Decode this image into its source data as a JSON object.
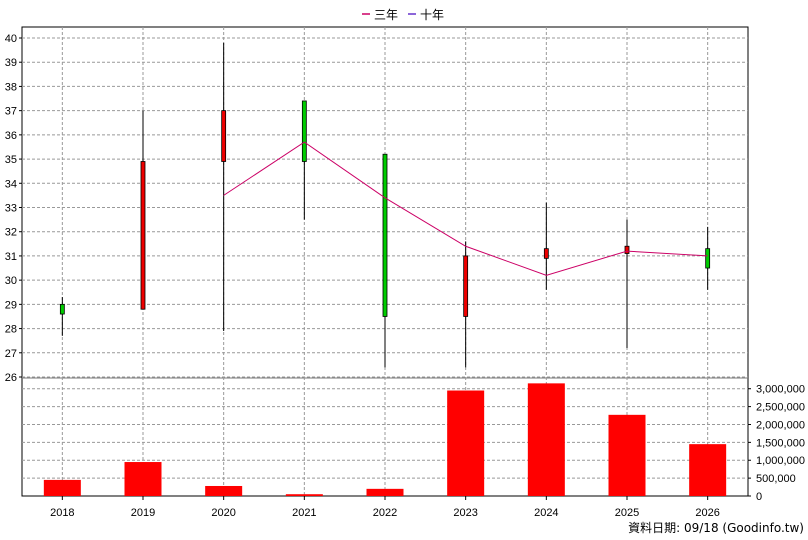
{
  "chart_data": {
    "type": "candlestick+bar",
    "legend": [
      {
        "name": "三年",
        "color": "#cc0066"
      },
      {
        "name": "十年",
        "color": "#6633cc"
      }
    ],
    "price_axis": {
      "min": 26,
      "max": 40,
      "ticks": [
        26,
        27,
        28,
        29,
        30,
        31,
        32,
        33,
        34,
        35,
        36,
        37,
        38,
        39,
        40
      ],
      "position": "left"
    },
    "volume_axis": {
      "min": 0,
      "max": 3000000,
      "ticks": [
        0,
        500000,
        1000000,
        1500000,
        2000000,
        2500000,
        3000000
      ],
      "tick_labels": [
        "0",
        "500,000",
        "1,000,000",
        "1,500,000",
        "2,000,000",
        "2,500,000",
        "3,000,000"
      ],
      "position": "right"
    },
    "categories": [
      "2018",
      "2019",
      "2020",
      "2021",
      "2022",
      "2023",
      "2024",
      "2025",
      "2026"
    ],
    "candles": [
      {
        "year": "2018",
        "open": 28.6,
        "close": 29.0,
        "high": 29.3,
        "low": 27.7,
        "color": "up"
      },
      {
        "year": "2019",
        "open": 34.9,
        "close": 28.8,
        "high": 37.0,
        "low": 28.8,
        "color": "down"
      },
      {
        "year": "2020",
        "open": 37.0,
        "close": 34.9,
        "high": 39.8,
        "low": 27.9,
        "color": "down"
      },
      {
        "year": "2021",
        "open": 34.9,
        "close": 37.4,
        "high": 37.4,
        "low": 32.5,
        "color": "up"
      },
      {
        "year": "2022",
        "open": 28.5,
        "close": 35.2,
        "high": 35.2,
        "low": 26.4,
        "color": "up"
      },
      {
        "year": "2023",
        "open": 31.0,
        "close": 28.5,
        "high": 31.6,
        "low": 26.4,
        "color": "down"
      },
      {
        "year": "2024",
        "open": 31.3,
        "close": 30.9,
        "high": 33.2,
        "low": 29.6,
        "color": "down"
      },
      {
        "year": "2025",
        "open": 31.4,
        "close": 31.1,
        "high": 32.5,
        "low": 27.2,
        "color": "down"
      },
      {
        "year": "2026",
        "open": 30.5,
        "close": 31.3,
        "high": 32.2,
        "low": 29.6,
        "color": "up"
      }
    ],
    "ma_line": {
      "name": "三年",
      "color": "#cc0066",
      "points": [
        {
          "year": "2020",
          "value": 33.5
        },
        {
          "year": "2021",
          "value": 35.7
        },
        {
          "year": "2022",
          "value": 33.4
        },
        {
          "year": "2023",
          "value": 31.4
        },
        {
          "year": "2024",
          "value": 30.2
        },
        {
          "year": "2025",
          "value": 31.2
        },
        {
          "year": "2026",
          "value": 31.0
        }
      ]
    },
    "volume": [
      {
        "year": "2018",
        "value": 450000
      },
      {
        "year": "2019",
        "value": 950000
      },
      {
        "year": "2020",
        "value": 280000
      },
      {
        "year": "2021",
        "value": 50000
      },
      {
        "year": "2022",
        "value": 200000
      },
      {
        "year": "2023",
        "value": 2950000
      },
      {
        "year": "2024",
        "value": 3150000
      },
      {
        "year": "2025",
        "value": 2270000
      },
      {
        "year": "2026",
        "value": 1450000
      }
    ],
    "colors": {
      "up": "#00cc00",
      "down": "#ee0000",
      "volume": "#ff0000",
      "grid": "#999999",
      "wick": "#000000"
    },
    "grid": true
  },
  "footer": {
    "text": "資料日期: 09/18  (Goodinfo.tw)"
  }
}
